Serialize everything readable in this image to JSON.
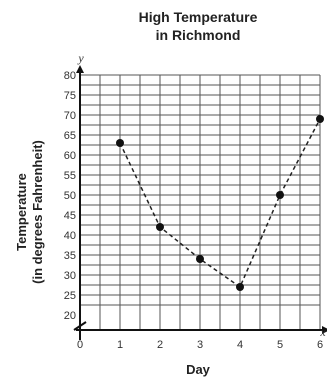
{
  "chart_data": {
    "type": "scatter",
    "title_line1": "High Temperature",
    "title_line2": "in Richmond",
    "xlabel": "Day",
    "ylabel_line1": "Temperature",
    "ylabel_line2": "(in degrees Fahrenheit)",
    "x_axis_letter": "x",
    "y_axis_letter": "y",
    "x": [
      1,
      2,
      3,
      4,
      5,
      6
    ],
    "y": [
      63,
      42,
      34,
      27,
      50,
      69
    ],
    "xlim": [
      0,
      6
    ],
    "ylim": [
      20,
      80
    ],
    "y_break": true,
    "x_ticks": [
      "0",
      "1",
      "2",
      "3",
      "4",
      "5",
      "6"
    ],
    "y_ticks": [
      "20",
      "25",
      "30",
      "35",
      "40",
      "45",
      "50",
      "55",
      "60",
      "65",
      "70",
      "75",
      "80"
    ],
    "grid": true,
    "line_style": "dashed",
    "point_color": "#111111"
  }
}
